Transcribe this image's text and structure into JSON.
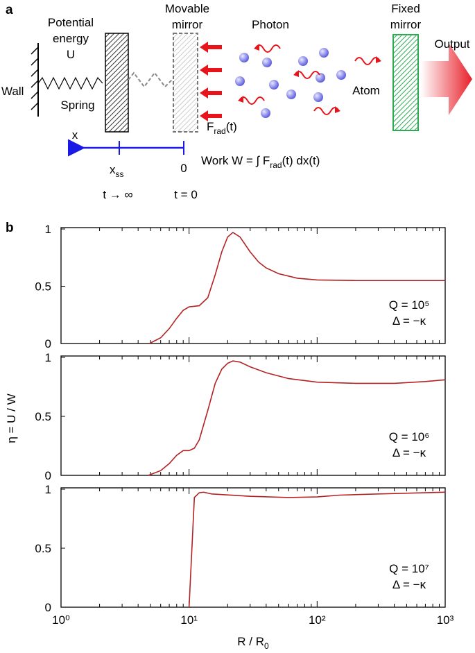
{
  "diagram": {
    "panel_label": "a",
    "potential_energy": [
      "Potential",
      "energy",
      "U"
    ],
    "wall": "Wall",
    "spring": "Spring",
    "movable_mirror": [
      "Movable",
      "mirror"
    ],
    "photon": "Photon",
    "atom": "Atom",
    "fixed_mirror": [
      "Fixed",
      "mirror"
    ],
    "output": "Output",
    "force": [
      "F",
      "rad",
      "(t)"
    ],
    "x_axis": "x",
    "x_ss": [
      "x",
      "ss"
    ],
    "zero": "0",
    "work": [
      "Work W = ∫ F",
      "rad",
      "(t) dx(t)"
    ],
    "t_inf": "t → ∞",
    "t_zero": "t = 0"
  },
  "figure": {
    "panel_label": "b",
    "ylabel": "η = U / W",
    "xlabel": [
      "R / R",
      "0"
    ]
  },
  "chart_data": [
    {
      "type": "line",
      "xscale": "log",
      "xlim": [
        1,
        1000
      ],
      "ylim": [
        0,
        1
      ],
      "xticks": [
        1,
        10,
        100,
        1000
      ],
      "xminorticks": [
        2,
        3,
        4,
        5,
        6,
        7,
        8,
        9,
        20,
        30,
        40,
        50,
        60,
        70,
        80,
        90,
        200,
        300,
        400,
        500,
        600,
        700,
        800,
        900
      ],
      "yticks": [
        0,
        0.5,
        1
      ],
      "annotations": [
        "Q = 10⁵",
        "Δ = −κ"
      ],
      "x": [
        4.9,
        6,
        7,
        8,
        9,
        10,
        12,
        14,
        16,
        18,
        20,
        22,
        25,
        30,
        35,
        40,
        50,
        70,
        100,
        200,
        1000
      ],
      "series": [
        {
          "color": "#b22222",
          "values": [
            0,
            0.05,
            0.13,
            0.22,
            0.29,
            0.32,
            0.33,
            0.4,
            0.6,
            0.8,
            0.93,
            0.97,
            0.93,
            0.8,
            0.71,
            0.66,
            0.61,
            0.57,
            0.555,
            0.55,
            0.55
          ]
        }
      ]
    },
    {
      "type": "line",
      "xscale": "log",
      "xlim": [
        1,
        1000
      ],
      "ylim": [
        0,
        1
      ],
      "xticks": [
        1,
        10,
        100,
        1000
      ],
      "xminorticks": [
        2,
        3,
        4,
        5,
        6,
        7,
        8,
        9,
        20,
        30,
        40,
        50,
        60,
        70,
        80,
        90,
        200,
        300,
        400,
        500,
        600,
        700,
        800,
        900
      ],
      "yticks": [
        0,
        0.5,
        1
      ],
      "annotations": [
        "Q = 10⁶",
        "Δ = −κ"
      ],
      "x": [
        4.8,
        6,
        7,
        8,
        9,
        10,
        11,
        12,
        14,
        16,
        18,
        20,
        22,
        25,
        30,
        40,
        60,
        100,
        200,
        400,
        700,
        1000
      ],
      "series": [
        {
          "color": "#b22222",
          "values": [
            0,
            0.04,
            0.1,
            0.17,
            0.21,
            0.21,
            0.23,
            0.3,
            0.55,
            0.78,
            0.9,
            0.95,
            0.97,
            0.96,
            0.92,
            0.87,
            0.82,
            0.79,
            0.78,
            0.78,
            0.795,
            0.81
          ]
        }
      ]
    },
    {
      "type": "line",
      "xscale": "log",
      "xlim": [
        1,
        1000
      ],
      "ylim": [
        0,
        1
      ],
      "xticks": [
        {
          "value": 1,
          "label": "10⁰"
        },
        {
          "value": 10,
          "label": "10¹"
        },
        {
          "value": 100,
          "label": "10²"
        },
        {
          "value": 1000,
          "label": "10³"
        }
      ],
      "xminorticks": [
        2,
        3,
        4,
        5,
        6,
        7,
        8,
        9,
        20,
        30,
        40,
        50,
        60,
        70,
        80,
        90,
        200,
        300,
        400,
        500,
        600,
        700,
        800,
        900
      ],
      "yticks": [
        0,
        0.5,
        1
      ],
      "annotations": [
        "Q = 10⁷",
        "Δ = −κ"
      ],
      "x": [
        10,
        11,
        12,
        13,
        15,
        30,
        60,
        100,
        150,
        300,
        1000
      ],
      "series": [
        {
          "color": "#b22222",
          "values": [
            0,
            0.93,
            0.97,
            0.975,
            0.96,
            0.94,
            0.93,
            0.935,
            0.95,
            0.96,
            0.975
          ]
        }
      ]
    }
  ]
}
